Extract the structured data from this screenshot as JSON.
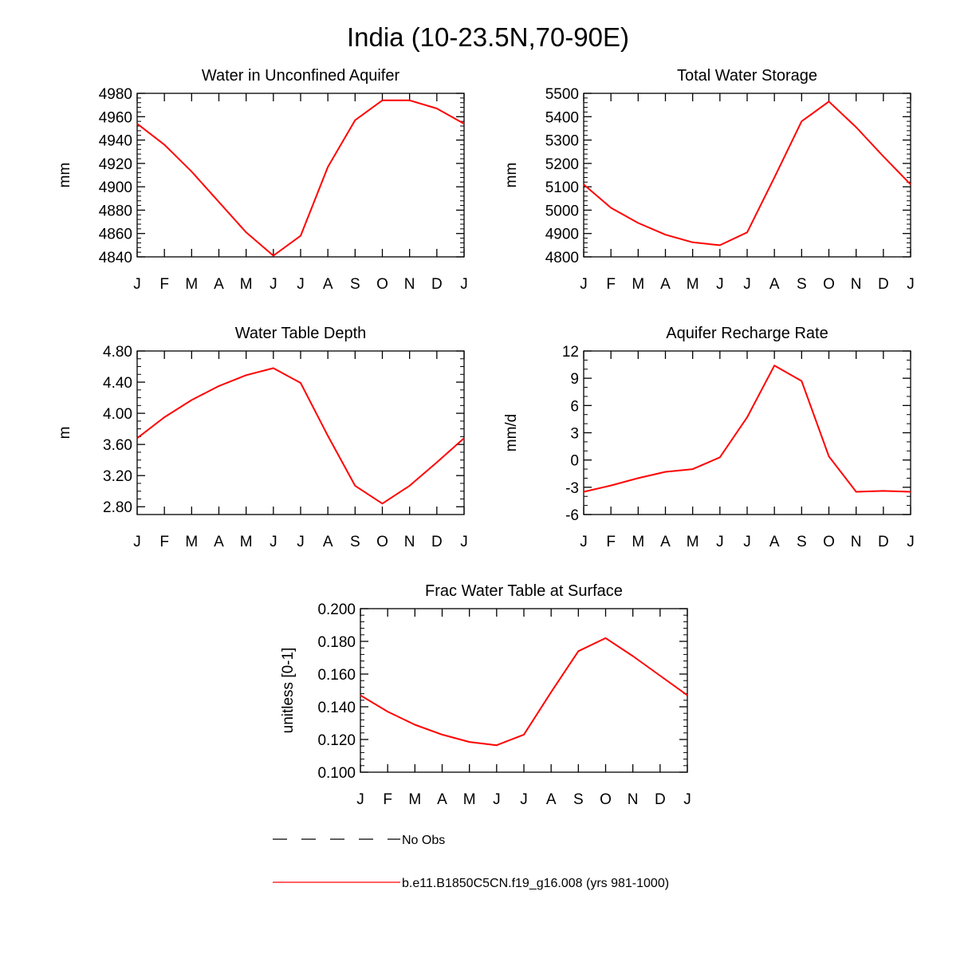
{
  "figure": {
    "title": "India (10-23.5N,70-90E)"
  },
  "legend": {
    "entries": [
      {
        "label": "No Obs",
        "color": "#000000",
        "dash": true
      },
      {
        "label": "b.e11.B1850C5CN.f19_g16.008 (yrs 981-1000)",
        "color": "#ff0000",
        "dash": false
      }
    ]
  },
  "chart_data": [
    {
      "type": "line",
      "title": "Water in Unconfined Aquifer",
      "ylabel": "mm",
      "categories": [
        "J",
        "F",
        "M",
        "A",
        "M",
        "J",
        "J",
        "A",
        "S",
        "O",
        "N",
        "D",
        "J"
      ],
      "ylim": [
        4840,
        4980
      ],
      "yticks": [
        4840,
        4860,
        4880,
        4900,
        4920,
        4940,
        4960,
        4980
      ],
      "yticklabels": [
        "4840",
        "4860",
        "4880",
        "4900",
        "4920",
        "4940",
        "4960",
        "4980"
      ],
      "yminor": 4,
      "series": [
        {
          "name": "b.e11.B1850C5CN.f19_g16.008 (yrs 981-1000)",
          "color": "#ff0000",
          "values": [
            4954,
            4936,
            4913,
            4887,
            4861,
            4841,
            4858,
            4917,
            4957,
            4974,
            4974,
            4967,
            4954
          ]
        }
      ]
    },
    {
      "type": "line",
      "title": "Total Water Storage",
      "ylabel": "mm",
      "categories": [
        "J",
        "F",
        "M",
        "A",
        "M",
        "J",
        "J",
        "A",
        "S",
        "O",
        "N",
        "D",
        "J"
      ],
      "ylim": [
        4800,
        5500
      ],
      "yticks": [
        4800,
        4900,
        5000,
        5100,
        5200,
        5300,
        5400,
        5500
      ],
      "yticklabels": [
        "4800",
        "4900",
        "5000",
        "5100",
        "5200",
        "5300",
        "5400",
        "5500"
      ],
      "yminor": 4,
      "series": [
        {
          "name": "b.e11.B1850C5CN.f19_g16.008 (yrs 981-1000)",
          "color": "#ff0000",
          "values": [
            5110,
            5010,
            4945,
            4895,
            4862,
            4850,
            4905,
            5140,
            5380,
            5465,
            5355,
            5230,
            5110
          ]
        }
      ]
    },
    {
      "type": "line",
      "title": "Water Table Depth",
      "ylabel": "m",
      "categories": [
        "J",
        "F",
        "M",
        "A",
        "M",
        "J",
        "J",
        "A",
        "S",
        "O",
        "N",
        "D",
        "J"
      ],
      "ylim": [
        2.7,
        4.8
      ],
      "yticks": [
        2.8,
        3.2,
        3.6,
        4.0,
        4.4,
        4.8
      ],
      "yticklabels": [
        "2.80",
        "3.20",
        "3.60",
        "4.00",
        "4.40",
        "4.80"
      ],
      "yminor": 3,
      "series": [
        {
          "name": "b.e11.B1850C5CN.f19_g16.008 (yrs 981-1000)",
          "color": "#ff0000",
          "values": [
            3.68,
            3.95,
            4.17,
            4.35,
            4.49,
            4.58,
            4.39,
            3.71,
            3.07,
            2.84,
            3.07,
            3.37,
            3.68
          ]
        }
      ]
    },
    {
      "type": "line",
      "title": "Aquifer Recharge Rate",
      "ylabel": "mm/d",
      "categories": [
        "J",
        "F",
        "M",
        "A",
        "M",
        "J",
        "J",
        "A",
        "S",
        "O",
        "N",
        "D",
        "J"
      ],
      "ylim": [
        -6,
        12
      ],
      "yticks": [
        -6,
        -3,
        0,
        3,
        6,
        9,
        12
      ],
      "yticklabels": [
        "-6",
        "-3",
        "0",
        "3",
        "6",
        "9",
        "12"
      ],
      "yminor": 2,
      "series": [
        {
          "name": "b.e11.B1850C5CN.f19_g16.008 (yrs 981-1000)",
          "color": "#ff0000",
          "values": [
            -3.5,
            -2.8,
            -2.0,
            -1.3,
            -1.0,
            0.3,
            4.7,
            10.4,
            8.7,
            0.4,
            -3.5,
            -3.4,
            -3.5
          ]
        }
      ]
    },
    {
      "type": "line",
      "title": "Frac Water Table at Surface",
      "ylabel": "unitless [0-1]",
      "categories": [
        "J",
        "F",
        "M",
        "A",
        "M",
        "J",
        "J",
        "A",
        "S",
        "O",
        "N",
        "D",
        "J"
      ],
      "ylim": [
        0.1,
        0.2
      ],
      "yticks": [
        0.1,
        0.12,
        0.14,
        0.16,
        0.18,
        0.2
      ],
      "yticklabels": [
        "0.100",
        "0.120",
        "0.140",
        "0.160",
        "0.180",
        "0.200"
      ],
      "yminor": 4,
      "series": [
        {
          "name": "b.e11.B1850C5CN.f19_g16.008 (yrs 981-1000)",
          "color": "#ff0000",
          "values": [
            0.147,
            0.137,
            0.129,
            0.123,
            0.1185,
            0.1165,
            0.123,
            0.149,
            0.174,
            0.182,
            0.171,
            0.159,
            0.147
          ]
        }
      ]
    }
  ]
}
